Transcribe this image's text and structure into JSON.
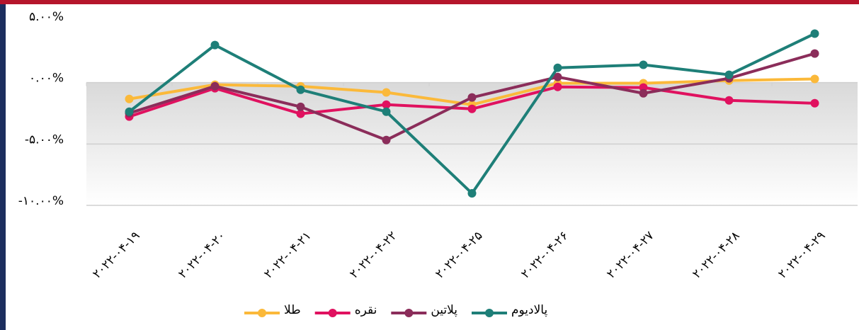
{
  "chart_data": {
    "type": "line",
    "categories": [
      "۲۰۲۲-۰۴-۱۹",
      "۲۰۲۲-۰۴-۲۰",
      "۲۰۲۲-۰۴-۲۱",
      "۲۰۲۲-۰۴-۲۲",
      "۲۰۲۲-۰۴-۲۵",
      "۲۰۲۲-۰۴-۲۶",
      "۲۰۲۲-۰۴-۲۷",
      "۲۰۲۲-۰۴-۲۸",
      "۲۰۲۲-۰۴-۲۹"
    ],
    "series": [
      {
        "name": "طلا",
        "color": "#fbb93a",
        "values": [
          -1.33,
          -0.17,
          -0.3,
          -0.8,
          -1.8,
          -0.05,
          -0.05,
          0.17,
          0.3
        ]
      },
      {
        "name": "نقره",
        "color": "#e0115f",
        "values": [
          -2.77,
          -0.46,
          -2.54,
          -1.79,
          -2.14,
          -0.35,
          -0.4,
          -1.45,
          -1.68
        ]
      },
      {
        "name": "پلاتین",
        "color": "#8b2d5a",
        "values": [
          -2.49,
          -0.29,
          -1.97,
          -4.68,
          -1.21,
          0.46,
          -0.87,
          0.35,
          2.37
        ]
      },
      {
        "name": "پالادیوم",
        "color": "#1e7f78",
        "values": [
          -2.37,
          3.06,
          -0.58,
          -2.37,
          -9.02,
          1.21,
          1.45,
          0.64,
          3.99
        ]
      }
    ],
    "ylim": [
      -10,
      5
    ],
    "yticks": [
      {
        "value": 5,
        "label": "۵.۰۰%"
      },
      {
        "value": 0,
        "label": "۰.۰۰%"
      },
      {
        "value": -5,
        "label": "-۵.۰۰%"
      },
      {
        "value": -10,
        "label": "-۱۰.۰۰%"
      }
    ],
    "grid": true,
    "legend": "bottom"
  }
}
